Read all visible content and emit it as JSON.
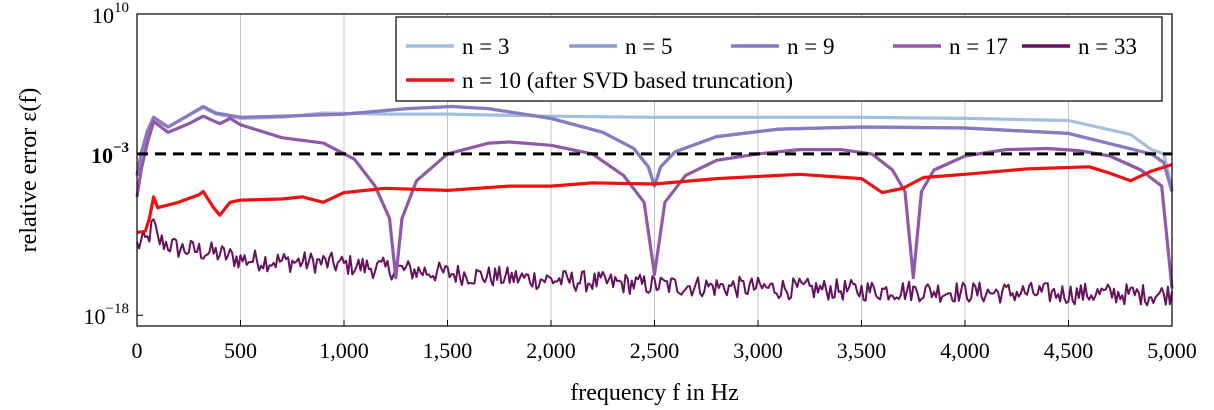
{
  "chart_data": {
    "type": "line",
    "xlabel": "frequency f in Hz",
    "ylabel": "relative error ε(f)",
    "xlim": [
      0,
      5000
    ],
    "ylim_log10": [
      -19,
      10
    ],
    "y_scale": "log",
    "grid": "vertical only",
    "legend_placement": "top-right",
    "x_ticks": [
      {
        "value": 0,
        "label": "0"
      },
      {
        "value": 500,
        "label": "500"
      },
      {
        "value": 1000,
        "label": "1,000"
      },
      {
        "value": 1500,
        "label": "1,500"
      },
      {
        "value": 2000,
        "label": "2,000"
      },
      {
        "value": 2500,
        "label": "2,500"
      },
      {
        "value": 3000,
        "label": "3,000"
      },
      {
        "value": 3500,
        "label": "3,500"
      },
      {
        "value": 4000,
        "label": "4,000"
      },
      {
        "value": 4500,
        "label": "4,500"
      },
      {
        "value": 5000,
        "label": "5,000"
      }
    ],
    "y_ticks": [
      {
        "exp": 10,
        "base": "10",
        "sup": "10",
        "bold": false
      },
      {
        "exp": -3,
        "base": "10",
        "sup": "−3",
        "bold": true
      },
      {
        "exp": -18,
        "base": "10",
        "sup": "−18",
        "bold": false
      }
    ],
    "threshold": {
      "exp": -3,
      "style": "dashed",
      "color": "#000000"
    },
    "series": [
      {
        "name": "n = 3",
        "color": "#a3bfde",
        "points_log10": [
          [
            0,
            -5
          ],
          [
            20,
            -3
          ],
          [
            50,
            -0.9
          ],
          [
            80,
            0.2
          ],
          [
            150,
            -0.5
          ],
          [
            250,
            0.6
          ],
          [
            320,
            1.3
          ],
          [
            380,
            0.7
          ],
          [
            500,
            0.3
          ],
          [
            700,
            0.4
          ],
          [
            900,
            0.8
          ],
          [
            1200,
            0.7
          ],
          [
            1500,
            0.7
          ],
          [
            2000,
            0.5
          ],
          [
            2500,
            0.4
          ],
          [
            3000,
            0.4
          ],
          [
            3500,
            0.4
          ],
          [
            4000,
            0.3
          ],
          [
            4500,
            0.1
          ],
          [
            4800,
            -1.2
          ],
          [
            4900,
            -2.6
          ],
          [
            4960,
            -3.0
          ],
          [
            5000,
            -6.2
          ]
        ]
      },
      {
        "name": "n = 5",
        "color": "#8c9ccd",
        "points_log10": [
          [
            0,
            -5
          ],
          [
            20,
            -3
          ],
          [
            50,
            -0.9
          ],
          [
            80,
            0.4
          ],
          [
            150,
            -0.5
          ],
          [
            250,
            0.6
          ],
          [
            320,
            1.4
          ],
          [
            380,
            0.8
          ],
          [
            500,
            0.4
          ],
          [
            700,
            0.5
          ],
          [
            1000,
            0.7
          ],
          [
            1300,
            1.2
          ],
          [
            1520,
            1.4
          ],
          [
            1700,
            1.2
          ],
          [
            2000,
            0.3
          ],
          [
            2250,
            -1.0
          ],
          [
            2400,
            -2.5
          ],
          [
            2470,
            -4.2
          ],
          [
            2500,
            -6.0
          ],
          [
            2530,
            -4.2
          ],
          [
            2600,
            -2.8
          ],
          [
            2800,
            -1.4
          ],
          [
            3100,
            -0.7
          ],
          [
            3500,
            -0.5
          ],
          [
            4000,
            -0.6
          ],
          [
            4500,
            -1.1
          ],
          [
            4900,
            -3.0
          ],
          [
            4960,
            -3.8
          ],
          [
            5000,
            -6.5
          ]
        ]
      },
      {
        "name": "n = 9",
        "color": "#8a79c0",
        "points_log10": [
          [
            0,
            -5
          ],
          [
            20,
            -3
          ],
          [
            50,
            -0.9
          ],
          [
            80,
            0.4
          ],
          [
            150,
            -0.5
          ],
          [
            250,
            0.6
          ],
          [
            320,
            1.4
          ],
          [
            380,
            0.8
          ],
          [
            500,
            0.4
          ],
          [
            700,
            0.5
          ],
          [
            1000,
            0.7
          ],
          [
            1300,
            1.2
          ],
          [
            1520,
            1.4
          ],
          [
            1700,
            1.2
          ],
          [
            2000,
            0.3
          ],
          [
            2250,
            -1.0
          ],
          [
            2400,
            -2.5
          ],
          [
            2470,
            -4.2
          ],
          [
            2500,
            -6.0
          ],
          [
            2530,
            -4.2
          ],
          [
            2600,
            -2.8
          ],
          [
            2800,
            -1.4
          ],
          [
            3100,
            -0.7
          ],
          [
            3500,
            -0.5
          ],
          [
            4000,
            -0.6
          ],
          [
            4500,
            -1.1
          ],
          [
            4900,
            -3.0
          ],
          [
            4960,
            -3.8
          ],
          [
            5000,
            -6.5
          ]
        ]
      },
      {
        "name": "n = 17",
        "color": "#8f59a8",
        "points_log10": [
          [
            0,
            -7
          ],
          [
            20,
            -4.5
          ],
          [
            50,
            -2
          ],
          [
            80,
            0.0
          ],
          [
            150,
            -1.0
          ],
          [
            250,
            -0.2
          ],
          [
            320,
            0.5
          ],
          [
            400,
            -0.2
          ],
          [
            450,
            0.3
          ],
          [
            500,
            -0.3
          ],
          [
            700,
            -1.5
          ],
          [
            900,
            -2.0
          ],
          [
            1050,
            -3.5
          ],
          [
            1150,
            -6
          ],
          [
            1220,
            -9
          ],
          [
            1250,
            -14.5
          ],
          [
            1280,
            -9
          ],
          [
            1350,
            -5.5
          ],
          [
            1500,
            -3.0
          ],
          [
            1700,
            -2.0
          ],
          [
            1800,
            -1.9
          ],
          [
            2000,
            -2.2
          ],
          [
            2200,
            -3.0
          ],
          [
            2350,
            -5.0
          ],
          [
            2450,
            -7.5
          ],
          [
            2500,
            -14.2
          ],
          [
            2550,
            -7.5
          ],
          [
            2650,
            -5.0
          ],
          [
            2800,
            -3.6
          ],
          [
            3000,
            -3.0
          ],
          [
            3200,
            -2.6
          ],
          [
            3400,
            -2.6
          ],
          [
            3550,
            -3.0
          ],
          [
            3650,
            -4.5
          ],
          [
            3710,
            -6.5
          ],
          [
            3750,
            -14.5
          ],
          [
            3790,
            -6.5
          ],
          [
            3850,
            -4.5
          ],
          [
            4000,
            -3.2
          ],
          [
            4200,
            -2.6
          ],
          [
            4400,
            -2.5
          ],
          [
            4550,
            -2.7
          ],
          [
            4700,
            -3.2
          ],
          [
            4850,
            -4.5
          ],
          [
            4950,
            -6.0
          ],
          [
            5000,
            -15.5
          ]
        ]
      },
      {
        "name": "n = 33",
        "color": "#66105e",
        "points_log10": [
          [
            0,
            -11.5
          ],
          [
            50,
            -11.0
          ],
          [
            80,
            -9.5
          ],
          [
            100,
            -11.0
          ],
          [
            200,
            -11.8
          ],
          [
            300,
            -12.0
          ],
          [
            400,
            -12.3
          ],
          [
            500,
            -12.8
          ],
          [
            700,
            -13.0
          ],
          [
            900,
            -13.1
          ],
          [
            1100,
            -13.5
          ],
          [
            1300,
            -13.8
          ],
          [
            1500,
            -14.1
          ],
          [
            1700,
            -14.4
          ],
          [
            1900,
            -14.6
          ],
          [
            2100,
            -14.8
          ],
          [
            2300,
            -15.0
          ],
          [
            2500,
            -15.2
          ],
          [
            2700,
            -15.3
          ],
          [
            2900,
            -15.4
          ],
          [
            3100,
            -15.5
          ],
          [
            3300,
            -15.6
          ],
          [
            3500,
            -15.7
          ],
          [
            3700,
            -15.7
          ],
          [
            3900,
            -15.8
          ],
          [
            4100,
            -15.9
          ],
          [
            4300,
            -15.9
          ],
          [
            4500,
            -16.0
          ],
          [
            4700,
            -16.0
          ],
          [
            4900,
            -16.1
          ],
          [
            5000,
            -16.0
          ]
        ],
        "noise_amplitude": 1.0
      },
      {
        "name": "n = 10 (after SVD based truncation)",
        "color": "#ee1111",
        "points_log10": [
          [
            0,
            -10.3
          ],
          [
            40,
            -10.2
          ],
          [
            60,
            -9.0
          ],
          [
            80,
            -7.0
          ],
          [
            100,
            -8.0
          ],
          [
            200,
            -7.5
          ],
          [
            300,
            -6.8
          ],
          [
            320,
            -6.5
          ],
          [
            370,
            -8.0
          ],
          [
            400,
            -8.7
          ],
          [
            450,
            -7.5
          ],
          [
            500,
            -7.3
          ],
          [
            700,
            -7.2
          ],
          [
            800,
            -7.0
          ],
          [
            900,
            -7.5
          ],
          [
            1000,
            -6.6
          ],
          [
            1200,
            -6.2
          ],
          [
            1500,
            -6.4
          ],
          [
            1800,
            -6.0
          ],
          [
            2000,
            -6.0
          ],
          [
            2200,
            -5.7
          ],
          [
            2500,
            -5.8
          ],
          [
            2800,
            -5.3
          ],
          [
            3200,
            -4.9
          ],
          [
            3500,
            -5.3
          ],
          [
            3600,
            -6.6
          ],
          [
            3700,
            -6.2
          ],
          [
            3800,
            -5.2
          ],
          [
            4000,
            -4.9
          ],
          [
            4300,
            -4.4
          ],
          [
            4600,
            -4.2
          ],
          [
            4700,
            -4.8
          ],
          [
            4800,
            -5.5
          ],
          [
            4900,
            -4.6
          ],
          [
            5000,
            -4.0
          ]
        ]
      }
    ]
  }
}
